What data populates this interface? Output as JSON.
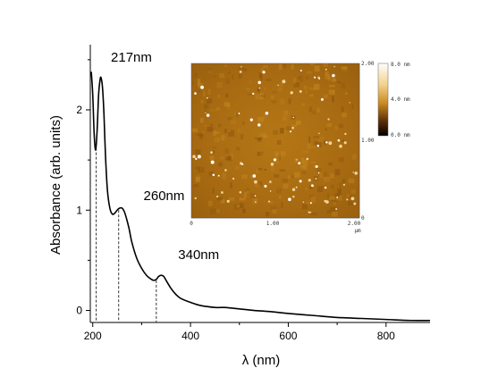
{
  "chart_data": {
    "type": "line",
    "xlabel": "λ (nm)",
    "ylabel": "Absorbance (arb. units)",
    "xlim": [
      195,
      890
    ],
    "ylim": [
      -0.12,
      2.65
    ],
    "x_ticks": [
      200,
      400,
      600,
      800
    ],
    "x_tick_labels": [
      "200",
      "400",
      "600",
      "800"
    ],
    "y_ticks": [
      0,
      1,
      2
    ],
    "y_tick_labels": [
      "0",
      "1",
      "2"
    ],
    "grid": false,
    "series": [
      {
        "x": [
          197,
          200,
          203,
          206,
          209,
          212,
          215,
          217,
          220,
          223,
          226,
          230,
          235,
          240,
          245,
          250,
          255,
          260,
          265,
          270,
          275,
          280,
          290,
          300,
          310,
          320,
          325,
          330,
          335,
          340,
          345,
          350,
          360,
          370,
          380,
          400,
          420,
          450,
          470,
          480,
          500,
          530,
          560,
          600,
          650,
          700,
          750,
          800,
          850,
          890
        ],
        "y": [
          2.38,
          2.15,
          1.75,
          1.6,
          1.8,
          2.15,
          2.3,
          2.32,
          2.22,
          1.95,
          1.55,
          1.2,
          1.02,
          0.96,
          0.97,
          1.0,
          1.02,
          1.02,
          0.98,
          0.9,
          0.8,
          0.68,
          0.52,
          0.42,
          0.35,
          0.31,
          0.3,
          0.31,
          0.34,
          0.35,
          0.34,
          0.3,
          0.22,
          0.16,
          0.12,
          0.08,
          0.05,
          0.03,
          0.03,
          0.025,
          0.015,
          0.0,
          -0.01,
          -0.03,
          -0.05,
          -0.07,
          -0.08,
          -0.09,
          -0.1,
          -0.1
        ],
        "color": "#000000"
      }
    ],
    "annotations": [
      {
        "text": "217nm",
        "x": 217,
        "y": 2.32
      },
      {
        "text": "260nm",
        "x": 260,
        "y": 1.02
      },
      {
        "text": "340nm",
        "x": 340,
        "y": 0.35
      }
    ],
    "reference_lines": [
      {
        "x": 207,
        "y_top": 1.62
      },
      {
        "x": 253,
        "y_top": 1.0
      },
      {
        "x": 330,
        "y_top": 0.3
      }
    ]
  },
  "inset": {
    "image": "AFM topography",
    "x_tick_labels": [
      "0",
      "1.00",
      "2.00"
    ],
    "x_unit": "µm",
    "y_tick_labels": [
      "2.00",
      "1.00",
      "0"
    ],
    "colorbar_labels": [
      "8.0 nm",
      "4.0 nm",
      "0.0 nm"
    ],
    "colorbar_colors": [
      "#ffffff",
      "#c98a22",
      "#000000"
    ]
  }
}
